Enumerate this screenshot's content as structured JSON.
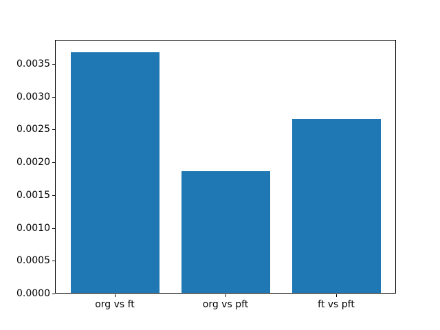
{
  "figure": {
    "background": "#ffffff"
  },
  "chart_data": {
    "type": "bar",
    "categories": [
      "org vs ft",
      "org vs pft",
      "ft vs pft"
    ],
    "values": [
      0.00368,
      0.00186,
      0.00266
    ],
    "title": "",
    "xlabel": "",
    "ylabel": "",
    "ylim": [
      0,
      0.003864
    ],
    "yticks": [
      0,
      0.0005,
      0.001,
      0.0015,
      0.002,
      0.0025,
      0.003,
      0.0035
    ],
    "ytick_labels": [
      "0.0000",
      "0.0005",
      "0.0010",
      "0.0015",
      "0.0020",
      "0.0025",
      "0.0030",
      "0.0035"
    ],
    "bar_color": "#1f77b4",
    "bar_width_fraction": 0.8,
    "category_margin": 0.54,
    "grid": false,
    "legend": null,
    "spine_color": "#000000",
    "tick_length": 4
  }
}
